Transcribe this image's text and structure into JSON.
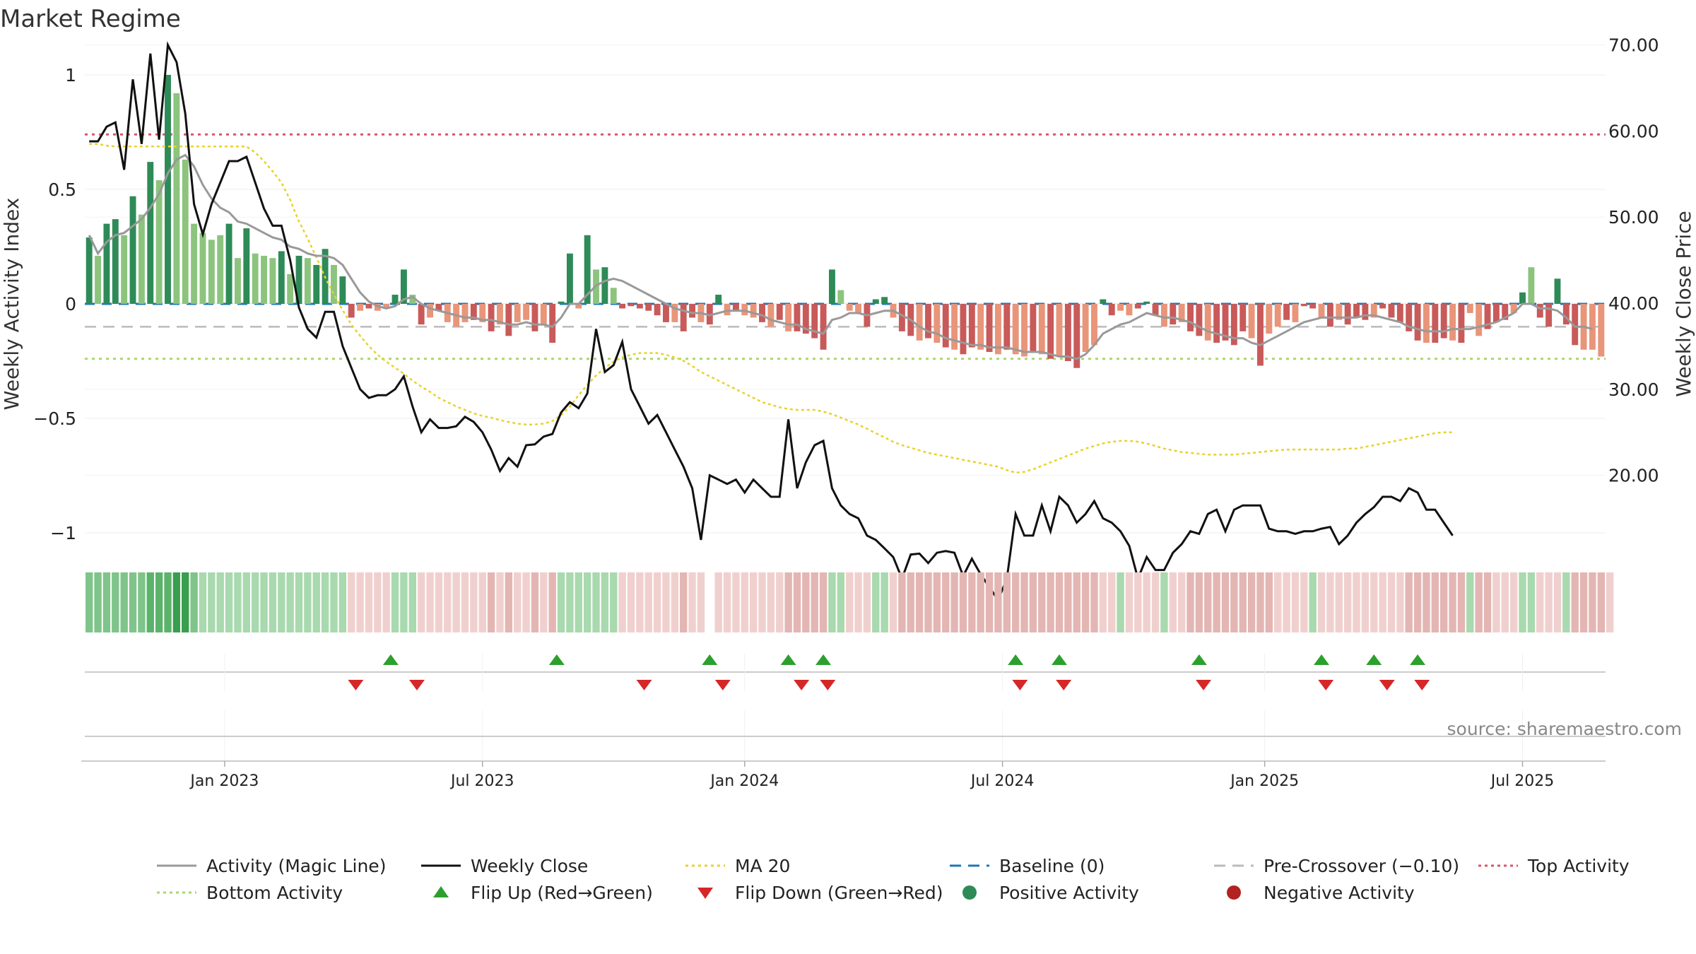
{
  "chart_data": {
    "type": "bar",
    "title": "Market Regime",
    "source": "source: sharemaestro.com",
    "y_left": {
      "label": "Weekly Activity Index",
      "range": [
        -1.08,
        1.06
      ],
      "ticks": [
        "1",
        "0.5",
        "0",
        "−0.5",
        "−1"
      ],
      "tick_values": [
        1,
        0.5,
        0,
        -0.5,
        -1
      ]
    },
    "y_right": {
      "label": "Weekly Close Price",
      "range": [
        14.35,
        70.6
      ],
      "ticks": [
        "70.00",
        "60.00",
        "50.00",
        "40.00",
        "30.00",
        "20.00"
      ],
      "tick_values": [
        70,
        60,
        50,
        40,
        30,
        20
      ]
    },
    "x_axis": {
      "ticks": [
        "Jan 2023",
        "Jul 2023",
        "Jan 2024",
        "Jul 2024",
        "Jan 2025",
        "Jul 2025"
      ],
      "tick_week_index": [
        16,
        45.5,
        75.5,
        105,
        135,
        164.5
      ],
      "start": "2022-09-10",
      "weeks": 180
    },
    "levels": {
      "top": 0.74,
      "bottom": -0.24,
      "pre_crossover": -0.1,
      "baseline": 0
    },
    "colors": {
      "strong_green": "#2e8b57",
      "light_green": "#8cc47e",
      "strong_red": "#c85a5a",
      "light_red": "#e8957a",
      "close": "#111111",
      "magic": "#999999",
      "ma20": "#e8d22c",
      "baseline": "#1f77b4",
      "top": "#d9536a",
      "bottom": "#a8d86e",
      "pre": "#bbbbbb",
      "flip_up": "#2ca02c",
      "flip_down": "#d62728"
    },
    "activity": [
      0.29,
      0.21,
      0.35,
      0.37,
      0.3,
      0.47,
      0.39,
      0.62,
      0.54,
      1.0,
      0.92,
      0.63,
      0.35,
      0.31,
      0.28,
      0.3,
      0.35,
      0.2,
      0.33,
      0.22,
      0.21,
      0.2,
      0.23,
      0.13,
      0.21,
      0.2,
      0.17,
      0.24,
      0.17,
      0.12,
      -0.06,
      -0.03,
      -0.02,
      -0.03,
      -0.02,
      0.04,
      0.15,
      0.04,
      -0.09,
      -0.06,
      -0.03,
      -0.08,
      -0.1,
      -0.08,
      -0.07,
      -0.08,
      -0.12,
      -0.09,
      -0.14,
      -0.08,
      -0.07,
      -0.12,
      -0.09,
      -0.17,
      0.01,
      0.22,
      -0.02,
      0.3,
      0.15,
      0.16,
      0.07,
      -0.02,
      -0.01,
      -0.02,
      -0.03,
      -0.05,
      -0.08,
      -0.08,
      -0.12,
      -0.06,
      -0.08,
      -0.09,
      0.04,
      -0.05,
      -0.03,
      -0.05,
      -0.06,
      -0.08,
      -0.1,
      -0.07,
      -0.12,
      -0.12,
      -0.13,
      -0.15,
      -0.2,
      0.15,
      0.06,
      -0.03,
      -0.04,
      -0.1,
      0.02,
      0.03,
      -0.06,
      -0.12,
      -0.14,
      -0.16,
      -0.15,
      -0.17,
      -0.19,
      -0.2,
      -0.22,
      -0.19,
      -0.2,
      -0.21,
      -0.22,
      -0.2,
      -0.22,
      -0.23,
      -0.21,
      -0.22,
      -0.24,
      -0.23,
      -0.25,
      -0.28,
      -0.21,
      -0.18,
      0.02,
      -0.05,
      -0.03,
      -0.05,
      -0.02,
      0.01,
      -0.05,
      -0.1,
      -0.09,
      -0.08,
      -0.12,
      -0.14,
      -0.16,
      -0.17,
      -0.16,
      -0.18,
      -0.12,
      -0.15,
      -0.27,
      -0.13,
      -0.1,
      -0.07,
      -0.08,
      -0.01,
      -0.02,
      -0.06,
      -0.1,
      -0.07,
      -0.09,
      -0.06,
      -0.07,
      -0.06,
      -0.02,
      -0.06,
      -0.08,
      -0.12,
      -0.16,
      -0.17,
      -0.17,
      -0.15,
      -0.16,
      -0.17,
      -0.04,
      -0.14,
      -0.11,
      -0.08,
      -0.07,
      -0.04,
      0.05,
      0.16,
      -0.06,
      -0.1,
      0.11,
      -0.09,
      -0.18,
      -0.2,
      -0.2,
      -0.23
    ],
    "strong": [
      1,
      0,
      1,
      1,
      0,
      1,
      0,
      1,
      0,
      1,
      0,
      0,
      0,
      0,
      0,
      0,
      1,
      0,
      1,
      0,
      0,
      0,
      1,
      0,
      1,
      0,
      1,
      1,
      0,
      1,
      1,
      0,
      1,
      0,
      0,
      1,
      1,
      0,
      1,
      0,
      1,
      0,
      0,
      0,
      1,
      0,
      1,
      0,
      1,
      0,
      0,
      1,
      0,
      1,
      1,
      1,
      0,
      1,
      0,
      1,
      0,
      1,
      1,
      1,
      1,
      1,
      1,
      0,
      1,
      1,
      0,
      1,
      1,
      0,
      1,
      0,
      0,
      1,
      0,
      1,
      0,
      1,
      1,
      1,
      1,
      1,
      0,
      0,
      0,
      1,
      1,
      1,
      0,
      1,
      1,
      0,
      1,
      0,
      1,
      0,
      1,
      1,
      0,
      1,
      0,
      1,
      0,
      0,
      1,
      0,
      1,
      0,
      1,
      1,
      0,
      0,
      1,
      1,
      0,
      0,
      1,
      1,
      1,
      0,
      1,
      0,
      1,
      1,
      0,
      1,
      1,
      1,
      1,
      0,
      1,
      0,
      0,
      1,
      0,
      1,
      1,
      0,
      1,
      0,
      1,
      1,
      1,
      0,
      1,
      1,
      1,
      1,
      1,
      0,
      1,
      1,
      0,
      1,
      0,
      0,
      1,
      1,
      1,
      0,
      1,
      0,
      1,
      1,
      1,
      1,
      1
    ],
    "magic_line": [
      0.3,
      0.22,
      0.27,
      0.3,
      0.31,
      0.34,
      0.37,
      0.42,
      0.48,
      0.57,
      0.63,
      0.65,
      0.6,
      0.52,
      0.46,
      0.42,
      0.4,
      0.36,
      0.35,
      0.33,
      0.31,
      0.29,
      0.28,
      0.25,
      0.24,
      0.22,
      0.21,
      0.21,
      0.2,
      0.17,
      0.11,
      0.05,
      0.01,
      -0.01,
      -0.02,
      -0.01,
      0.02,
      0.03,
      0.0,
      -0.02,
      -0.03,
      -0.04,
      -0.05,
      -0.06,
      -0.06,
      -0.07,
      -0.07,
      -0.08,
      -0.09,
      -0.09,
      -0.08,
      -0.09,
      -0.09,
      -0.1,
      -0.06,
      0.0,
      0.0,
      0.04,
      0.08,
      0.1,
      0.11,
      0.1,
      0.08,
      0.06,
      0.04,
      0.02,
      0.0,
      -0.02,
      -0.03,
      -0.04,
      -0.04,
      -0.05,
      -0.04,
      -0.03,
      -0.03,
      -0.03,
      -0.04,
      -0.05,
      -0.07,
      -0.08,
      -0.09,
      -0.09,
      -0.11,
      -0.12,
      -0.13,
      -0.07,
      -0.06,
      -0.04,
      -0.04,
      -0.05,
      -0.04,
      -0.03,
      -0.03,
      -0.05,
      -0.07,
      -0.1,
      -0.12,
      -0.13,
      -0.15,
      -0.16,
      -0.17,
      -0.18,
      -0.18,
      -0.19,
      -0.19,
      -0.19,
      -0.2,
      -0.21,
      -0.21,
      -0.21,
      -0.22,
      -0.23,
      -0.23,
      -0.24,
      -0.22,
      -0.18,
      -0.13,
      -0.11,
      -0.09,
      -0.08,
      -0.06,
      -0.04,
      -0.05,
      -0.06,
      -0.06,
      -0.07,
      -0.08,
      -0.1,
      -0.12,
      -0.13,
      -0.14,
      -0.15,
      -0.15,
      -0.17,
      -0.18,
      -0.16,
      -0.14,
      -0.12,
      -0.1,
      -0.08,
      -0.07,
      -0.06,
      -0.06,
      -0.06,
      -0.06,
      -0.06,
      -0.05,
      -0.05,
      -0.06,
      -0.07,
      -0.08,
      -0.1,
      -0.11,
      -0.12,
      -0.12,
      -0.12,
      -0.11,
      -0.11,
      -0.11,
      -0.1,
      -0.09,
      -0.08,
      -0.06,
      -0.04,
      0.0,
      0.0,
      -0.02,
      -0.02,
      -0.03,
      -0.06,
      -0.1,
      -0.1,
      -0.11
    ],
    "weekly_close": [
      58.8,
      58.8,
      60.5,
      61.0,
      55.5,
      66.0,
      58.5,
      69.0,
      59.0,
      70.0,
      68.0,
      62.0,
      51.5,
      48.0,
      51.5,
      54.0,
      56.5,
      56.5,
      57.0,
      54.0,
      51.0,
      49.0,
      49.0,
      45.0,
      39.5,
      37.0,
      36.0,
      39.0,
      39.0,
      35.0,
      32.5,
      30.0,
      29.0,
      29.3,
      29.3,
      30.0,
      31.5,
      28.0,
      25.0,
      26.5,
      25.5,
      25.5,
      25.7,
      26.8,
      26.2,
      25.0,
      23.0,
      20.5,
      22.0,
      21.0,
      23.5,
      23.6,
      24.5,
      24.8,
      27.3,
      28.5,
      27.8,
      29.5,
      37.0,
      32.0,
      32.8,
      35.5,
      30.0,
      28.0,
      26.0,
      27.0,
      25.0,
      23.0,
      21.0,
      18.5,
      12.5,
      20.0,
      19.5,
      19.0,
      19.5,
      18.0,
      19.5,
      18.5,
      17.5,
      17.5,
      26.5,
      18.5,
      21.5,
      23.5,
      24.0,
      18.5,
      16.5,
      15.5,
      15.0,
      13.0,
      12.5,
      11.5,
      10.5,
      8.0,
      10.8,
      10.9,
      9.8,
      11.0,
      11.2,
      11.0,
      8.3,
      10.3,
      8.5,
      7.0,
      5.5,
      8.0,
      15.5,
      13.0,
      13.0,
      16.5,
      13.5,
      17.5,
      16.5,
      14.5,
      15.5,
      17.0,
      15.0,
      14.5,
      13.5,
      11.8,
      8.0,
      10.5,
      9.0,
      9.0,
      11.0,
      12.0,
      13.5,
      13.2,
      15.5,
      16.0,
      13.5,
      16.0,
      16.5,
      16.5,
      16.5,
      13.8,
      13.5,
      13.5,
      13.2,
      13.5,
      13.5,
      13.8,
      14.0,
      12.0,
      13.0,
      14.5,
      15.5,
      16.3,
      17.5,
      17.5,
      17.0,
      18.5,
      18.0,
      16.0,
      16.0,
      14.5,
      13.0
    ],
    "ma20": [
      58.5,
      58.5,
      58.3,
      58.2,
      58.2,
      58.2,
      58.2,
      58.2,
      58.2,
      58.2,
      58.2,
      58.2,
      58.2,
      58.2,
      58.2,
      58.2,
      58.2,
      58.2,
      58.2,
      57.5,
      56.5,
      55.3,
      54.0,
      52.0,
      49.5,
      47.5,
      45.3,
      43.0,
      41.0,
      39.2,
      37.5,
      36.2,
      35.0,
      34.0,
      33.2,
      32.5,
      31.8,
      31.0,
      30.3,
      29.7,
      29.0,
      28.5,
      28.0,
      27.6,
      27.2,
      26.9,
      26.7,
      26.4,
      26.2,
      26.0,
      25.9,
      25.9,
      26.0,
      26.3,
      27.0,
      28.0,
      29.3,
      30.5,
      31.6,
      32.5,
      33.2,
      33.7,
      34.0,
      34.2,
      34.2,
      34.2,
      34.0,
      33.7,
      33.3,
      32.7,
      32.0,
      31.5,
      31.0,
      30.5,
      30.0,
      29.5,
      29.0,
      28.5,
      28.2,
      27.9,
      27.7,
      27.6,
      27.6,
      27.6,
      27.4,
      27.1,
      26.7,
      26.3,
      25.9,
      25.4,
      24.9,
      24.4,
      23.9,
      23.5,
      23.2,
      22.9,
      22.6,
      22.4,
      22.2,
      22.0,
      21.8,
      21.6,
      21.4,
      21.2,
      21.0,
      20.6,
      20.3,
      20.4,
      20.7,
      21.1,
      21.5,
      21.9,
      22.3,
      22.7,
      23.1,
      23.4,
      23.7,
      23.9,
      24.0,
      24.0,
      23.9,
      23.7,
      23.4,
      23.1,
      22.9,
      22.7,
      22.6,
      22.5,
      22.4,
      22.4,
      22.4,
      22.4,
      22.5,
      22.6,
      22.7,
      22.8,
      22.9,
      23.0,
      23.0,
      23.0,
      23.0,
      23.0,
      23.0,
      23.0,
      23.1,
      23.1,
      23.3,
      23.5,
      23.7,
      23.9,
      24.1,
      24.3,
      24.5,
      24.7,
      24.9,
      25.0,
      25.0
    ],
    "ribbon": [
      2,
      2,
      2,
      2,
      2,
      2,
      2,
      3,
      3,
      3,
      4,
      4,
      2,
      1,
      1,
      1,
      1,
      1,
      1,
      1,
      1,
      1,
      1,
      1,
      1,
      1,
      1,
      1,
      1,
      1,
      -1,
      -1,
      -1,
      -1,
      -1,
      1,
      1,
      1,
      -1,
      -1,
      -1,
      -1,
      -1,
      -1,
      -1,
      -1,
      -1,
      -1,
      -1,
      -1,
      -1,
      -1,
      -1,
      -1,
      1,
      1,
      1,
      1,
      1,
      1,
      1,
      -1,
      -1,
      -1,
      -1,
      -1,
      -1,
      -1,
      -1,
      -1,
      -1,
      0,
      -1,
      -1,
      -1,
      -1,
      -1,
      -1,
      -1,
      -1,
      -1,
      -1,
      -1,
      -1,
      -1,
      1,
      1,
      -1,
      -1,
      -1,
      1,
      1,
      -1,
      -1,
      -1,
      -1,
      -1,
      -1,
      -1,
      -1,
      -1,
      -1,
      -1,
      -1,
      -1,
      -1,
      -1,
      -1,
      -1,
      -1,
      -1,
      -1,
      -1,
      -1,
      -1,
      -1,
      -1,
      -1,
      1,
      -1,
      -1,
      -1,
      -1,
      1,
      -1,
      -1,
      -1,
      -1,
      -1,
      -1,
      -1,
      -1,
      -1,
      -1,
      -1,
      -1,
      -1,
      -1,
      -1,
      -1,
      1,
      -1,
      -1,
      -1,
      -1,
      -1,
      -1,
      -1,
      -1,
      -1,
      -1,
      -1,
      -1,
      -1,
      -1,
      -1,
      -1,
      -1,
      1,
      -1,
      -1,
      -1,
      -1,
      -1,
      1,
      1,
      -1,
      -1,
      -1,
      1,
      -1,
      -1,
      -1,
      -1,
      -1
    ],
    "flip_up_weeks": [
      35,
      54,
      71.5,
      80.5,
      84.5,
      106.5,
      111.5,
      127.5,
      141.5,
      147.5,
      152.5
    ],
    "flip_down_weeks": [
      31,
      38,
      64,
      73,
      82,
      85,
      107,
      112,
      128,
      142,
      149,
      153
    ],
    "legend": [
      {
        "label": "Activity (Magic Line)",
        "kind": "line",
        "color": "#999999"
      },
      {
        "label": "Weekly Close",
        "kind": "line",
        "color": "#111111"
      },
      {
        "label": "MA 20",
        "kind": "dotted",
        "color": "#e8d22c"
      },
      {
        "label": "Baseline (0)",
        "kind": "dash",
        "color": "#1f77b4"
      },
      {
        "label": "Pre-Crossover (−0.10)",
        "kind": "dash",
        "color": "#bbbbbb"
      },
      {
        "label": "Top Activity",
        "kind": "dotted",
        "color": "#d9536a"
      },
      {
        "label": "Bottom Activity",
        "kind": "dotted",
        "color": "#a8d86e"
      },
      {
        "label": "Flip Up (Red→Green)",
        "kind": "tri-up",
        "color": "#2ca02c"
      },
      {
        "label": "Flip Down (Green→Red)",
        "kind": "tri-down",
        "color": "#d62728"
      },
      {
        "label": "Positive Activity",
        "kind": "dot",
        "color": "#2e8b57"
      },
      {
        "label": "Negative Activity",
        "kind": "dot",
        "color": "#b22222"
      }
    ]
  }
}
